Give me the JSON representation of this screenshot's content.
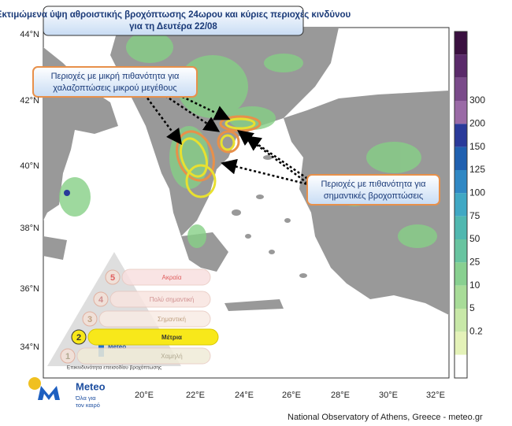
{
  "header": {
    "title": [
      "Εκτιμώμενα ύψη αθροιστικής βροχόπτωσης 24ωρου και κύριες περιοχές κινδύνου",
      "για τη Δευτέρα 22/08"
    ]
  },
  "callouts": [
    {
      "lines": [
        "Περιοχές με μικρή πιθανότητα για",
        "χαλαζοπτώσεις μικρού μεγέθους"
      ]
    },
    {
      "lines": [
        "Περιοχές με πιθανότητα για",
        "σημαντικές βροχοπτώσεις"
      ]
    }
  ],
  "map": {
    "lat_labels": [
      "44°N",
      "42°N",
      "40°N",
      "38°N",
      "36°N",
      "34°N"
    ],
    "lon_labels": [
      "20°E",
      "22°E",
      "24°E",
      "26°E",
      "28°E",
      "30°E",
      "32°E"
    ]
  },
  "colorbar": {
    "labels": [
      "300",
      "200",
      "150",
      "125",
      "100",
      "75",
      "50",
      "25",
      "10",
      "5",
      "0.2"
    ]
  },
  "risk_legend": {
    "levels": [
      {
        "number": "5",
        "label": "Ακραία"
      },
      {
        "number": "4",
        "label": "Πολύ σημαντική"
      },
      {
        "number": "3",
        "label": "Σημαντική"
      },
      {
        "number": "2",
        "label": "Μέτρια"
      },
      {
        "number": "1",
        "label": "Χαμηλή"
      }
    ],
    "caption": "Επικινδυνότητα επεισοδίου βροχόπτωσης",
    "logo_name": "Meteo"
  },
  "logo": {
    "name": "Meteo",
    "tagline": [
      "Όλα για",
      "τον καιρό"
    ]
  },
  "footer": "National Observatory of Athens, Greece - meteo.gr"
}
